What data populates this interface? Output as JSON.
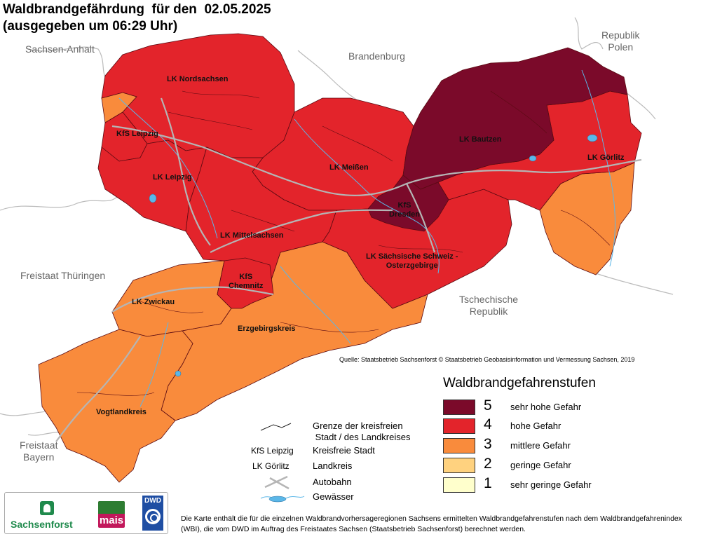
{
  "title": {
    "line1": "Waldbrandgefährdung  für den  02.05.2025",
    "line2": "(ausgegeben um 06:29 Uhr)"
  },
  "neighbors": {
    "sachsen_anhalt": "Sachsen-Anhalt",
    "brandenburg": "Brandenburg",
    "polen": "Republik\nPolen",
    "thueringen": "Freistaat Thüringen",
    "tschechien": "Tschechische\nRepublik",
    "bayern": "Freistaat\nBayern"
  },
  "districts": [
    {
      "label": "LK Nordsachsen",
      "level": 4
    },
    {
      "label": "KfS Leipzig",
      "level": 4
    },
    {
      "label": "LK Leipzig",
      "level": 4
    },
    {
      "label": "LK Meißen",
      "level": 4
    },
    {
      "label": "LK Bautzen",
      "level": 5
    },
    {
      "label": "LK Görlitz",
      "level": 4
    },
    {
      "label": "KfS\nDresden",
      "level": 5
    },
    {
      "label": "LK Mittelsachsen",
      "level": 4
    },
    {
      "label": "LK Sächsische Schweiz -\nOsterzgebirge",
      "level": 4
    },
    {
      "label": "KfS\nChemnitz",
      "level": 4
    },
    {
      "label": "LK Zwickau",
      "level": 3
    },
    {
      "label": "Erzgebirgskreis",
      "level": 3
    },
    {
      "label": "Vogtlandkreis",
      "level": 3
    }
  ],
  "source": "Quelle: Staatsbetrieb Sachsenforst  © Staatsbetrieb Geobasisinformation und Vermessung Sachsen, 2019",
  "legend": {
    "title": "Waldbrandgefahrenstufen",
    "items": [
      {
        "level": "5",
        "text": "sehr hohe Gefahr",
        "color": "#7b0a2a"
      },
      {
        "level": "4",
        "text": "hohe Gefahr",
        "color": "#e3242b"
      },
      {
        "level": "3",
        "text": "mittlere Gefahr",
        "color": "#f98b3c"
      },
      {
        "level": "2",
        "text": "geringe Gefahr",
        "color": "#ffd27f"
      },
      {
        "level": "1",
        "text": "sehr geringe Gefahr",
        "color": "#ffffcc"
      }
    ]
  },
  "key": {
    "boundary": "Grenze der kreisfreien\n Stadt / des Landkreises",
    "kfs_example": "KfS Leipzig",
    "kfs_text": "Kreisfreie Stadt",
    "lk_example": "LK Görlitz",
    "lk_text": "Landkreis",
    "autobahn": "Autobahn",
    "gewaesser": "Gewässer"
  },
  "footnote": "Die Karte enthält die für die einzelnen Waldbrandvorhersageregionen Sachsens ermittelten Waldbrandgefahrenstufen nach dem Waldbrandgefahrenindex (WBI), die vom DWD im Auftrag des Freistaates Sachsen (Staatsbetrieb Sachsenforst) berechnet werden.",
  "logos": {
    "sachsenforst": "Sachsenforst",
    "mais": "mais",
    "dwd": "DWD"
  },
  "colors": {
    "level5": "#7b0a2a",
    "level4": "#e3242b",
    "level3": "#f98b3c",
    "border": "#5a0a12",
    "water": "#5bb7e8",
    "autobahn": "#b5b5b5",
    "state_border": "#bbbbbb"
  }
}
